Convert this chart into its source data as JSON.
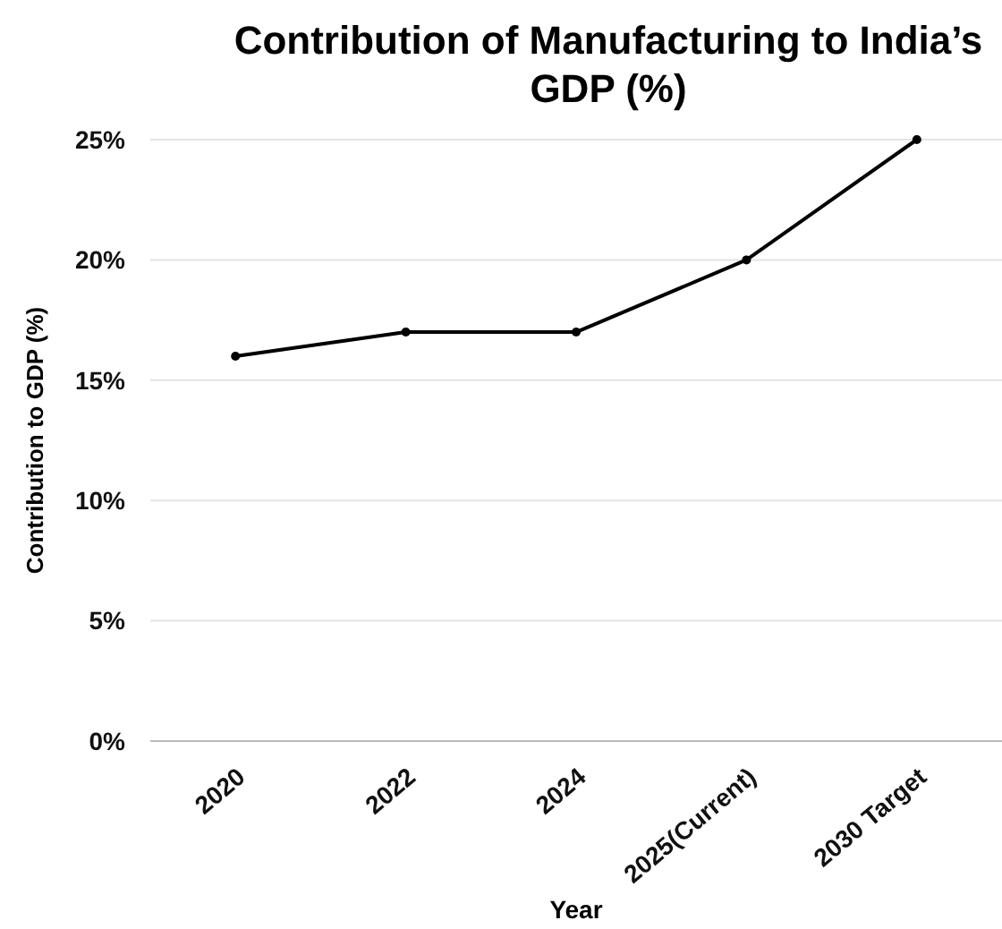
{
  "chart_data": {
    "type": "line",
    "title": "Contribution of Manufacturing to India’s GDP (%)",
    "xlabel": "Year",
    "ylabel": "Contribution to GDP (%)",
    "categories": [
      "2020",
      "2022",
      "2024",
      "2025(Current)",
      "2030 Target"
    ],
    "series": [
      {
        "color": "#000000",
        "values": [
          16,
          17,
          17,
          20,
          25
        ]
      }
    ],
    "ylim": [
      0,
      25
    ],
    "yticks": [
      {
        "value": 0,
        "label": "0%"
      },
      {
        "value": 5,
        "label": "5%"
      },
      {
        "value": 10,
        "label": "10%"
      },
      {
        "value": 15,
        "label": "15%"
      },
      {
        "value": 20,
        "label": "20%"
      },
      {
        "value": 25,
        "label": "25%"
      }
    ],
    "grid": "y",
    "marker": "circle",
    "line_style": "solid"
  }
}
